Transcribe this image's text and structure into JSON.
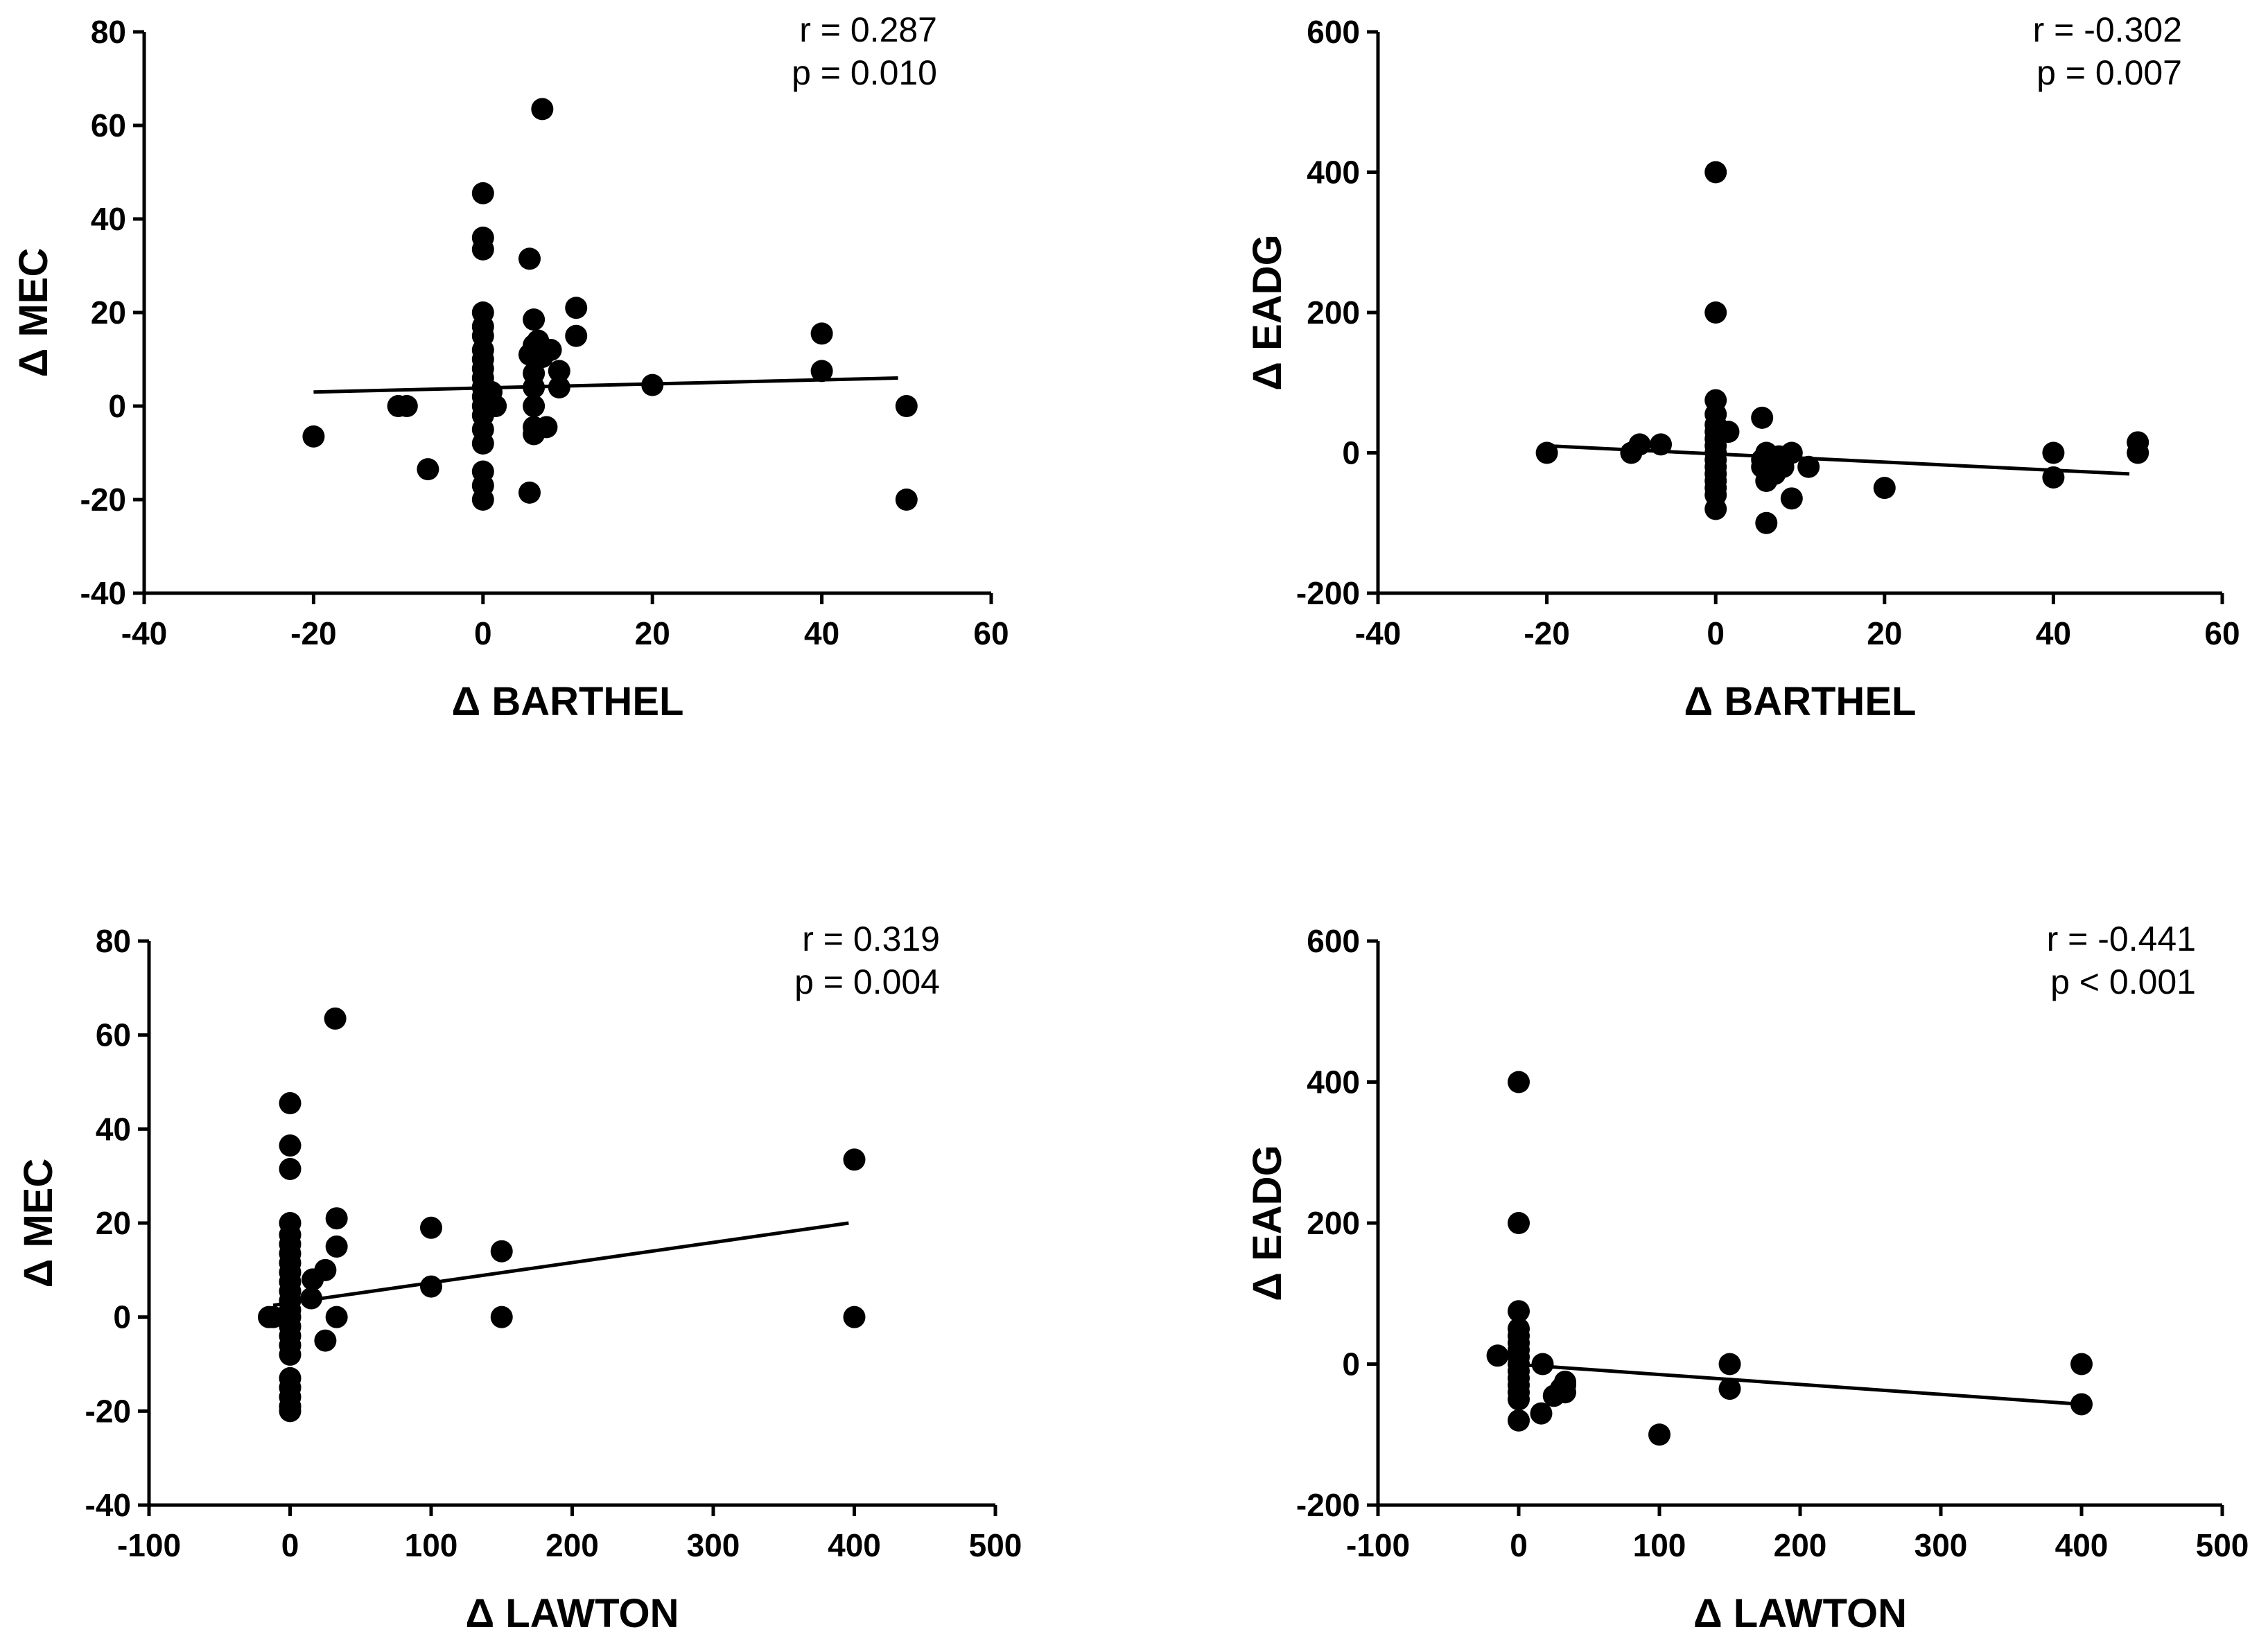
{
  "chart_data": [
    {
      "type": "scatter",
      "xlabel": "Δ BARTHEL",
      "ylabel": "Δ MEC",
      "xlim": [
        -40,
        60
      ],
      "xticks": [
        -40,
        -20,
        0,
        20,
        40,
        60
      ],
      "ylim": [
        -40,
        80
      ],
      "yticks": [
        -40,
        -20,
        0,
        20,
        40,
        60,
        80
      ],
      "annotations": [
        "r = 0.287",
        "p = 0.010"
      ],
      "fit_line": {
        "x": [
          -20,
          49
        ],
        "y": [
          3,
          6
        ]
      },
      "points": [
        [
          -20,
          -6.5
        ],
        [
          -10,
          0
        ],
        [
          -9,
          0
        ],
        [
          -6.5,
          -13.5
        ],
        [
          0,
          45.5
        ],
        [
          0,
          36
        ],
        [
          0,
          33.5
        ],
        [
          0,
          20
        ],
        [
          0,
          17
        ],
        [
          0,
          15
        ],
        [
          0,
          12
        ],
        [
          0,
          10
        ],
        [
          0,
          8
        ],
        [
          0,
          6
        ],
        [
          0,
          4
        ],
        [
          0,
          2
        ],
        [
          0,
          0
        ],
        [
          0,
          -2
        ],
        [
          0,
          -5
        ],
        [
          0,
          -8
        ],
        [
          0,
          -14
        ],
        [
          0,
          -17
        ],
        [
          0,
          -20
        ],
        [
          1,
          3
        ],
        [
          1.5,
          0
        ],
        [
          5.5,
          31.5
        ],
        [
          5.5,
          11
        ],
        [
          5.5,
          -18.5
        ],
        [
          6,
          18.5
        ],
        [
          6,
          13
        ],
        [
          6,
          7
        ],
        [
          6,
          4
        ],
        [
          6,
          0
        ],
        [
          6,
          -4.5
        ],
        [
          6,
          -6
        ],
        [
          6.5,
          14
        ],
        [
          7,
          63.5
        ],
        [
          7,
          10.5
        ],
        [
          7.5,
          -4.5
        ],
        [
          8,
          12
        ],
        [
          9,
          7.5
        ],
        [
          9,
          4
        ],
        [
          11,
          21
        ],
        [
          11,
          15
        ],
        [
          20,
          4.5
        ],
        [
          40,
          15.5
        ],
        [
          40,
          7.5
        ],
        [
          50,
          0
        ],
        [
          50,
          -20
        ]
      ]
    },
    {
      "type": "scatter",
      "xlabel": "Δ BARTHEL",
      "ylabel": "Δ EADG",
      "xlim": [
        -40,
        60
      ],
      "xticks": [
        -40,
        -20,
        0,
        20,
        40,
        60
      ],
      "ylim": [
        -200,
        600
      ],
      "yticks": [
        -200,
        0,
        200,
        400,
        600
      ],
      "annotations": [
        "r = -0.302",
        "p = 0.007"
      ],
      "fit_line": {
        "x": [
          -20,
          49
        ],
        "y": [
          10,
          -30
        ]
      },
      "points": [
        [
          -20,
          0
        ],
        [
          -10,
          0
        ],
        [
          -9,
          12
        ],
        [
          -6.5,
          12
        ],
        [
          0,
          400
        ],
        [
          0,
          200
        ],
        [
          0,
          75
        ],
        [
          0,
          55
        ],
        [
          0,
          40
        ],
        [
          0,
          30
        ],
        [
          0,
          20
        ],
        [
          0,
          10
        ],
        [
          0,
          0
        ],
        [
          0,
          -10
        ],
        [
          0,
          -20
        ],
        [
          0,
          -30
        ],
        [
          0,
          -40
        ],
        [
          0,
          -50
        ],
        [
          0,
          -60
        ],
        [
          0,
          -80
        ],
        [
          1.5,
          30
        ],
        [
          5.5,
          50
        ],
        [
          5.5,
          -10
        ],
        [
          5.5,
          -20
        ],
        [
          6,
          0
        ],
        [
          6,
          -25
        ],
        [
          6,
          -40
        ],
        [
          6,
          -100
        ],
        [
          6.5,
          -5
        ],
        [
          7,
          -30
        ],
        [
          7,
          -15
        ],
        [
          7.5,
          -5
        ],
        [
          8,
          -20
        ],
        [
          9,
          0
        ],
        [
          9,
          -65
        ],
        [
          11,
          -20
        ],
        [
          20,
          -50
        ],
        [
          40,
          0
        ],
        [
          40,
          -35
        ],
        [
          50,
          15
        ],
        [
          50,
          0
        ]
      ]
    },
    {
      "type": "scatter",
      "xlabel": "Δ LAWTON",
      "ylabel": "Δ MEC",
      "xlim": [
        -100,
        500
      ],
      "xticks": [
        -100,
        0,
        100,
        200,
        300,
        400,
        500
      ],
      "ylim": [
        -40,
        80
      ],
      "yticks": [
        -40,
        -20,
        0,
        20,
        40,
        60,
        80
      ],
      "annotations": [
        "r = 0.319",
        "p = 0.004"
      ],
      "fit_line": {
        "x": [
          -12,
          396
        ],
        "y": [
          2.5,
          20
        ]
      },
      "points": [
        [
          -15,
          0
        ],
        [
          -12,
          0
        ],
        [
          0,
          45.5
        ],
        [
          0,
          36.5
        ],
        [
          0,
          31.5
        ],
        [
          0,
          20
        ],
        [
          0,
          17.5
        ],
        [
          0,
          15.5
        ],
        [
          0,
          13.5
        ],
        [
          0,
          11.5
        ],
        [
          0,
          9.5
        ],
        [
          0,
          7.5
        ],
        [
          0,
          5.5
        ],
        [
          0,
          3.5
        ],
        [
          0,
          1.5
        ],
        [
          0,
          0
        ],
        [
          0,
          -2
        ],
        [
          0,
          -4
        ],
        [
          0,
          -6
        ],
        [
          0,
          -8
        ],
        [
          0,
          -13
        ],
        [
          0,
          -15
        ],
        [
          0,
          -17
        ],
        [
          0,
          -19
        ],
        [
          0,
          -20
        ],
        [
          15,
          4
        ],
        [
          16,
          8
        ],
        [
          25,
          10
        ],
        [
          25,
          -5
        ],
        [
          32,
          63.5
        ],
        [
          33,
          21
        ],
        [
          33,
          15
        ],
        [
          33,
          0
        ],
        [
          100,
          19
        ],
        [
          100,
          6.5
        ],
        [
          150,
          14
        ],
        [
          150,
          0
        ],
        [
          400,
          33.5
        ],
        [
          400,
          0
        ]
      ]
    },
    {
      "type": "scatter",
      "xlabel": "Δ LAWTON",
      "ylabel": "Δ EADG",
      "xlim": [
        -100,
        500
      ],
      "xticks": [
        -100,
        0,
        100,
        200,
        300,
        400,
        500
      ],
      "ylim": [
        -200,
        600
      ],
      "yticks": [
        -200,
        0,
        200,
        400,
        600
      ],
      "annotations": [
        "r = -0.441",
        "p < 0.001"
      ],
      "fit_line": {
        "x": [
          -5,
          400
        ],
        "y": [
          0,
          -57
        ]
      },
      "points": [
        [
          -15,
          12
        ],
        [
          0,
          400
        ],
        [
          0,
          200
        ],
        [
          0,
          75
        ],
        [
          0,
          50
        ],
        [
          0,
          40
        ],
        [
          0,
          30
        ],
        [
          0,
          20
        ],
        [
          0,
          10
        ],
        [
          0,
          0
        ],
        [
          0,
          -10
        ],
        [
          0,
          -20
        ],
        [
          0,
          -30
        ],
        [
          0,
          -40
        ],
        [
          0,
          -50
        ],
        [
          0,
          -80
        ],
        [
          16,
          -70
        ],
        [
          17,
          0
        ],
        [
          25,
          -45
        ],
        [
          30,
          -35
        ],
        [
          33,
          -30
        ],
        [
          33,
          -25
        ],
        [
          33,
          -40
        ],
        [
          100,
          -100
        ],
        [
          150,
          0
        ],
        [
          150,
          -35
        ],
        [
          400,
          0
        ],
        [
          400,
          -57
        ]
      ]
    }
  ]
}
